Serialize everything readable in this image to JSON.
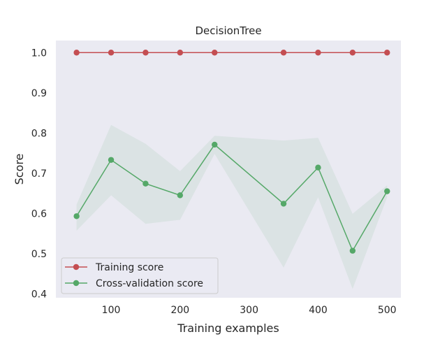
{
  "chart_data": {
    "type": "line",
    "title": "DecisionTree",
    "xlabel": "Training examples",
    "ylabel": "Score",
    "xlim": [
      20,
      520
    ],
    "ylim": [
      0.39,
      1.03
    ],
    "x_ticks": [
      100,
      200,
      300,
      400,
      500
    ],
    "x_tick_labels": [
      "100",
      "200",
      "300",
      "400",
      "500"
    ],
    "y_ticks": [
      0.4,
      0.5,
      0.6,
      0.7,
      0.8,
      0.9,
      1.0
    ],
    "y_tick_labels": [
      "0.4",
      "0.5",
      "0.6",
      "0.7",
      "0.8",
      "0.9",
      "1.0"
    ],
    "grid": false,
    "legend_position": "lower-left",
    "x": [
      50,
      100,
      150,
      200,
      250,
      350,
      400,
      450,
      500
    ],
    "series": [
      {
        "name": "Training score",
        "color": "#c44e52",
        "values": [
          1.0,
          1.0,
          1.0,
          1.0,
          1.0,
          1.0,
          1.0,
          1.0,
          1.0
        ],
        "band_lower": [
          1.0,
          1.0,
          1.0,
          1.0,
          1.0,
          1.0,
          1.0,
          1.0,
          1.0
        ],
        "band_upper": [
          1.0,
          1.0,
          1.0,
          1.0,
          1.0,
          1.0,
          1.0,
          1.0,
          1.0
        ]
      },
      {
        "name": "Cross-validation score",
        "color": "#55a868",
        "values": [
          0.593,
          0.733,
          0.674,
          0.645,
          0.771,
          0.624,
          0.714,
          0.507,
          0.655
        ],
        "band_lower": [
          0.557,
          0.645,
          0.574,
          0.584,
          0.748,
          0.465,
          0.64,
          0.412,
          0.64
        ],
        "band_upper": [
          0.622,
          0.82,
          0.773,
          0.705,
          0.793,
          0.781,
          0.788,
          0.599,
          0.67
        ]
      }
    ],
    "colors": {
      "plot_background": "#eaeaf2",
      "band_fill": "#55a868",
      "text": "#262626"
    }
  }
}
